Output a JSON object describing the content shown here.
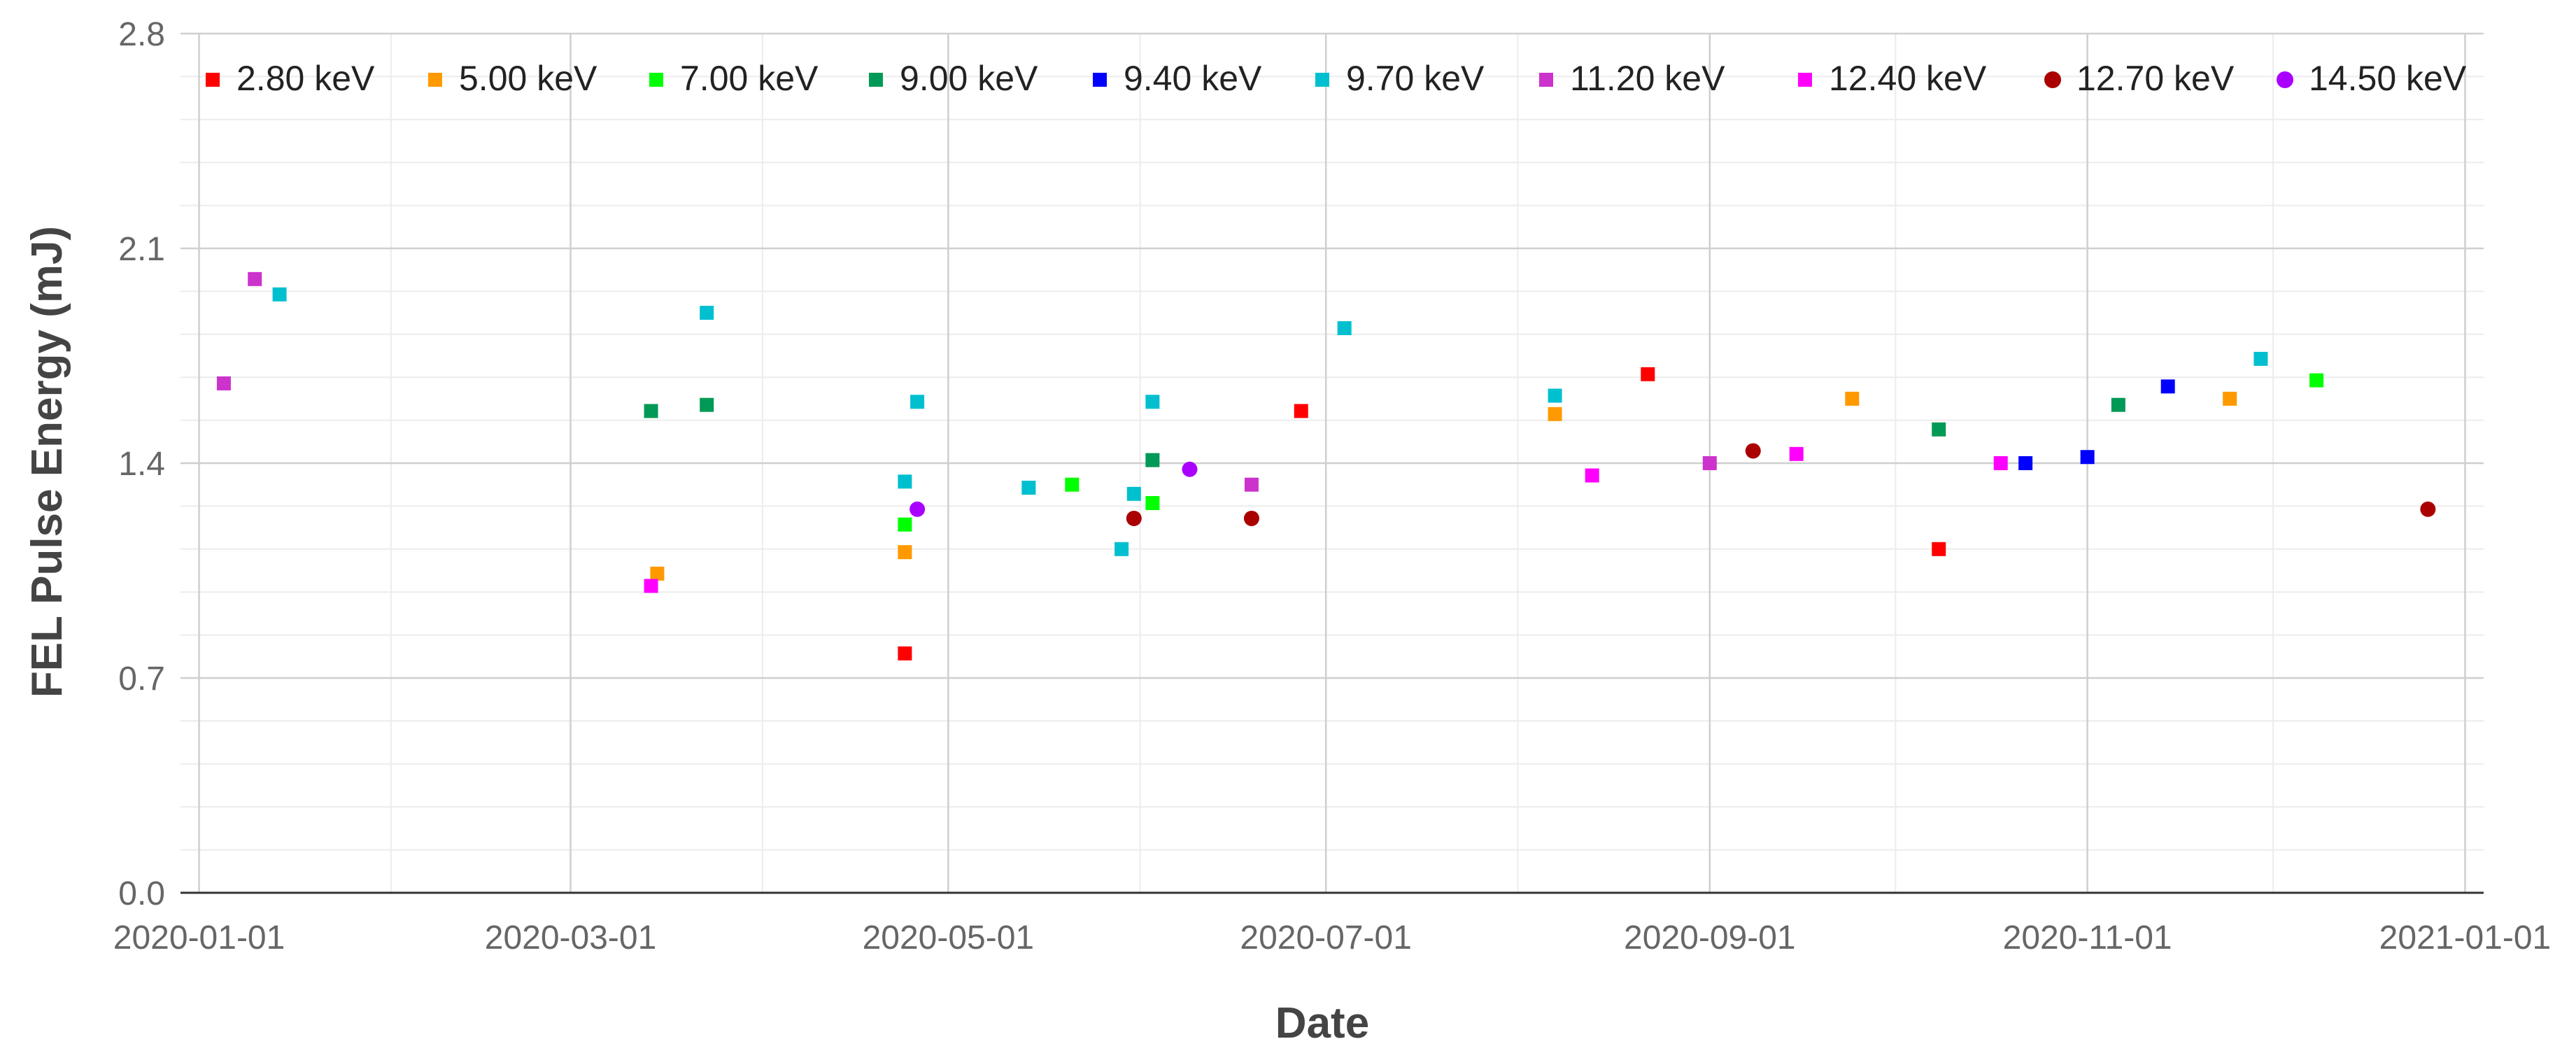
{
  "chart_data": {
    "type": "scatter",
    "title": "",
    "xlabel": "Date",
    "ylabel": "FEL Pulse Energy (mJ)",
    "x_type": "date",
    "xlim": [
      "2019-12-29",
      "2021-01-04"
    ],
    "ylim": [
      0,
      2.8
    ],
    "yticks": [
      0.0,
      0.7,
      1.4,
      2.1,
      2.8
    ],
    "ytick_labels": [
      "0.0",
      "0.7",
      "1.4",
      "2.1",
      "2.8"
    ],
    "xticks": [
      "2020-01-01",
      "2020-03-01",
      "2020-05-01",
      "2020-07-01",
      "2020-09-01",
      "2020-11-01",
      "2021-01-01"
    ],
    "xtick_labels": [
      "2020-01-01",
      "2020-03-01",
      "2020-05-01",
      "2020-07-01",
      "2020-09-01",
      "2020-11-01",
      "2021-01-01"
    ],
    "grid": true,
    "legend_position": "top",
    "series": [
      {
        "name": "2.80 keV",
        "color": "#ff0000",
        "marker": "square",
        "points": [
          [
            "2020-04-24",
            0.78
          ],
          [
            "2020-06-27",
            1.57
          ],
          [
            "2020-08-22",
            1.69
          ],
          [
            "2020-10-08",
            1.12
          ]
        ]
      },
      {
        "name": "5.00 keV",
        "color": "#ff9900",
        "marker": "square",
        "points": [
          [
            "2020-03-15",
            1.04
          ],
          [
            "2020-04-24",
            1.11
          ],
          [
            "2020-08-07",
            1.56
          ],
          [
            "2020-09-24",
            1.61
          ],
          [
            "2020-11-24",
            1.61
          ]
        ]
      },
      {
        "name": "7.00 keV",
        "color": "#00ff00",
        "marker": "square",
        "points": [
          [
            "2020-04-24",
            1.2
          ],
          [
            "2020-05-21",
            1.33
          ],
          [
            "2020-06-03",
            1.27
          ],
          [
            "2020-12-08",
            1.67
          ]
        ]
      },
      {
        "name": "9.00 keV",
        "color": "#009955",
        "marker": "square",
        "points": [
          [
            "2020-03-14",
            1.57
          ],
          [
            "2020-03-23",
            1.59
          ],
          [
            "2020-06-03",
            1.41
          ],
          [
            "2020-10-08",
            1.51
          ],
          [
            "2020-11-06",
            1.59
          ]
        ]
      },
      {
        "name": "9.40 keV",
        "color": "#0000ff",
        "marker": "square",
        "points": [
          [
            "2020-10-22",
            1.4
          ],
          [
            "2020-11-01",
            1.42
          ],
          [
            "2020-11-14",
            1.65
          ]
        ]
      },
      {
        "name": "9.70 keV",
        "color": "#00c0d0",
        "marker": "square",
        "points": [
          [
            "2020-01-14",
            1.95
          ],
          [
            "2020-03-23",
            1.89
          ],
          [
            "2020-04-24",
            1.34
          ],
          [
            "2020-04-26",
            1.6
          ],
          [
            "2020-05-14",
            1.32
          ],
          [
            "2020-05-29",
            1.12
          ],
          [
            "2020-05-31",
            1.3
          ],
          [
            "2020-06-03",
            1.6
          ],
          [
            "2020-07-04",
            1.84
          ],
          [
            "2020-08-07",
            1.62
          ],
          [
            "2020-11-29",
            1.74
          ]
        ]
      },
      {
        "name": "11.20 keV",
        "color": "#cc33cc",
        "marker": "square",
        "points": [
          [
            "2020-01-05",
            1.66
          ],
          [
            "2020-01-10",
            2.0
          ],
          [
            "2020-06-19",
            1.33
          ],
          [
            "2020-09-01",
            1.4
          ]
        ]
      },
      {
        "name": "12.40 keV",
        "color": "#ff00ff",
        "marker": "square",
        "points": [
          [
            "2020-03-14",
            1.0
          ],
          [
            "2020-08-13",
            1.36
          ],
          [
            "2020-09-15",
            1.43
          ],
          [
            "2020-10-18",
            1.4
          ]
        ]
      },
      {
        "name": "12.70 keV",
        "color": "#aa0000",
        "marker": "circle",
        "points": [
          [
            "2020-05-31",
            1.22
          ],
          [
            "2020-06-19",
            1.22
          ],
          [
            "2020-09-08",
            1.44
          ],
          [
            "2020-12-26",
            1.25
          ]
        ]
      },
      {
        "name": "14.50 keV",
        "color": "#aa00ff",
        "marker": "circle",
        "points": [
          [
            "2020-04-26",
            1.25
          ],
          [
            "2020-06-09",
            1.38
          ]
        ]
      }
    ]
  }
}
